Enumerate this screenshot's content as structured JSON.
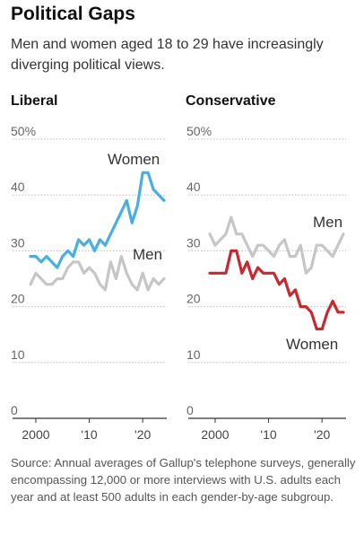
{
  "header": {
    "title": "Political Gaps",
    "subtitle": "Men and women aged 18 to 29 have increasingly diverging political views."
  },
  "panels": [
    {
      "title": "Liberal"
    },
    {
      "title": "Conservative"
    }
  ],
  "source": "Source: Annual averages of Gallup's telephone surveys, generally encompassing 12,000 or more interviews with U.S. adults each year and at least 500 adults in each gender-by-age subgroup.",
  "colors": {
    "liberal_women": "#4aaee0",
    "conservative_women": "#c8292e",
    "men": "#c6c6c6"
  },
  "chart_data": [
    {
      "type": "line",
      "title": "Liberal",
      "ylim": [
        0,
        50
      ],
      "yticks": [
        "0",
        "10",
        "20",
        "30",
        "40",
        "50%"
      ],
      "xticks": [
        "2000",
        "'10",
        "'20"
      ],
      "series": [
        {
          "name": "Women",
          "x": [
            1999,
            2000,
            2001,
            2002,
            2003,
            2004,
            2005,
            2006,
            2007,
            2008,
            2009,
            2010,
            2011,
            2012,
            2013,
            2014,
            2015,
            2016,
            2017,
            2018,
            2019,
            2020,
            2021,
            2022,
            2023,
            2024
          ],
          "y": [
            29,
            29,
            28,
            29,
            28,
            27,
            29,
            30,
            29,
            32,
            31,
            32,
            30,
            32,
            31,
            33,
            35,
            37,
            39,
            35,
            38,
            44,
            44,
            41,
            40,
            39
          ]
        },
        {
          "name": "Men",
          "x": [
            1999,
            2000,
            2001,
            2002,
            2003,
            2004,
            2005,
            2006,
            2007,
            2008,
            2009,
            2010,
            2011,
            2012,
            2013,
            2014,
            2015,
            2016,
            2017,
            2018,
            2019,
            2020,
            2021,
            2022,
            2023,
            2024
          ],
          "y": [
            24,
            26,
            25,
            24,
            24,
            25,
            25,
            27,
            28,
            28,
            26,
            27,
            26,
            24,
            23,
            28,
            25,
            29,
            26,
            24,
            23,
            26,
            23,
            25,
            24,
            25
          ]
        }
      ]
    },
    {
      "type": "line",
      "title": "Conservative",
      "ylim": [
        0,
        50
      ],
      "yticks": [
        "0",
        "10",
        "20",
        "30",
        "40",
        "50%"
      ],
      "xticks": [
        "2000",
        "'10",
        "'20"
      ],
      "series": [
        {
          "name": "Men",
          "x": [
            1999,
            2000,
            2001,
            2002,
            2003,
            2004,
            2005,
            2006,
            2007,
            2008,
            2009,
            2010,
            2011,
            2012,
            2013,
            2014,
            2015,
            2016,
            2017,
            2018,
            2019,
            2020,
            2021,
            2022,
            2023,
            2024
          ],
          "y": [
            33,
            31,
            32,
            33,
            36,
            33,
            33,
            31,
            29,
            31,
            31,
            30,
            29,
            31,
            32,
            29,
            29,
            31,
            26,
            27,
            31,
            31,
            30,
            29,
            31,
            33
          ]
        },
        {
          "name": "Women",
          "x": [
            1999,
            2000,
            2001,
            2002,
            2003,
            2004,
            2005,
            2006,
            2007,
            2008,
            2009,
            2010,
            2011,
            2012,
            2013,
            2014,
            2015,
            2016,
            2017,
            2018,
            2019,
            2020,
            2021,
            2022,
            2023,
            2024
          ],
          "y": [
            26,
            26,
            26,
            26,
            30,
            30,
            26,
            28,
            25,
            27,
            26,
            26,
            26,
            24,
            25,
            22,
            23,
            20,
            20,
            19,
            16,
            16,
            19,
            21,
            19,
            19
          ]
        }
      ]
    }
  ]
}
